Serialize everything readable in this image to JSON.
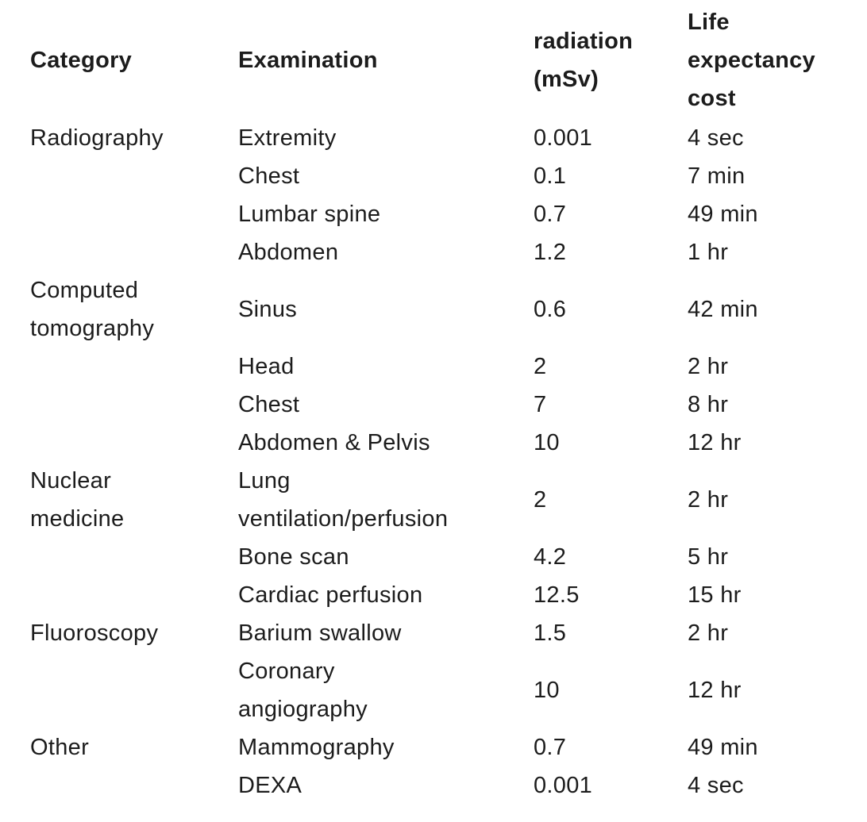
{
  "page": {
    "background": "#ffffff",
    "text_color": "#1c1c1c"
  },
  "chart_data": {
    "type": "table",
    "columns": [
      "Category",
      "Examination",
      "radiation (mSv)",
      "Life expectancy cost"
    ],
    "rows": [
      [
        "Radiography",
        "Extremity",
        "0.001",
        "4 sec"
      ],
      [
        "Radiography",
        "Chest",
        "0.1",
        "7 min"
      ],
      [
        "Radiography",
        "Lumbar spine",
        "0.7",
        "49 min"
      ],
      [
        "Radiography",
        "Abdomen",
        "1.2",
        "1 hr"
      ],
      [
        "Computed tomography",
        "Sinus",
        "0.6",
        "42 min"
      ],
      [
        "Computed tomography",
        "Head",
        "2",
        "2 hr"
      ],
      [
        "Computed tomography",
        "Chest",
        "7",
        "8 hr"
      ],
      [
        "Computed tomography",
        "Abdomen & Pelvis",
        "10",
        "12 hr"
      ],
      [
        "Nuclear medicine",
        "Lung ventilation/perfusion",
        "2",
        "2 hr"
      ],
      [
        "Nuclear medicine",
        "Bone scan",
        "4.2",
        "5 hr"
      ],
      [
        "Nuclear medicine",
        "Cardiac perfusion",
        "12.5",
        "15 hr"
      ],
      [
        "Fluoroscopy",
        "Barium swallow",
        "1.5",
        "2 hr"
      ],
      [
        "Fluoroscopy",
        "Coronary angiography",
        "10",
        "12 hr"
      ],
      [
        "Other",
        "Mammography",
        "0.7",
        "49 min"
      ],
      [
        "Other",
        "DEXA",
        "0.001",
        "4 sec"
      ]
    ]
  },
  "header": {
    "category": "Category",
    "examination": "Examination",
    "radiation": [
      "radiation",
      "(mSv)"
    ],
    "cost": [
      "Life",
      "expectancy",
      "cost"
    ]
  },
  "display_rows": [
    {
      "category": "Radiography",
      "examination": "Extremity",
      "radiation": "0.001",
      "cost": "4 sec"
    },
    {
      "category": "",
      "examination": "Chest",
      "radiation": "0.1",
      "cost": "7 min"
    },
    {
      "category": "",
      "examination": "Lumbar spine",
      "radiation": "0.7",
      "cost": "49 min"
    },
    {
      "category": "",
      "examination": "Abdomen",
      "radiation": "1.2",
      "cost": "1 hr"
    },
    {
      "category": [
        "Computed",
        "tomography"
      ],
      "examination": "Sinus",
      "radiation": "0.6",
      "cost": "42 min"
    },
    {
      "category": "",
      "examination": "Head",
      "radiation": "2",
      "cost": "2 hr"
    },
    {
      "category": "",
      "examination": "Chest",
      "radiation": "7",
      "cost": "8 hr"
    },
    {
      "category": "",
      "examination": "Abdomen & Pelvis",
      "radiation": "10",
      "cost": "12 hr"
    },
    {
      "category": [
        "Nuclear",
        "medicine"
      ],
      "examination": [
        "Lung",
        "ventilation/perfusion"
      ],
      "radiation": "2",
      "cost": "2 hr"
    },
    {
      "category": "",
      "examination": "Bone scan",
      "radiation": "4.2",
      "cost": "5 hr"
    },
    {
      "category": "",
      "examination": "Cardiac perfusion",
      "radiation": "12.5",
      "cost": "15 hr"
    },
    {
      "category": "Fluoroscopy",
      "examination": "Barium swallow",
      "radiation": "1.5",
      "cost": "2 hr"
    },
    {
      "category": "",
      "examination": [
        "Coronary",
        "angiography"
      ],
      "radiation": "10",
      "cost": "12 hr"
    },
    {
      "category": "Other",
      "examination": "Mammography",
      "radiation": "0.7",
      "cost": "49 min"
    },
    {
      "category": "",
      "examination": "DEXA",
      "radiation": "0.001",
      "cost": "4 sec"
    }
  ]
}
